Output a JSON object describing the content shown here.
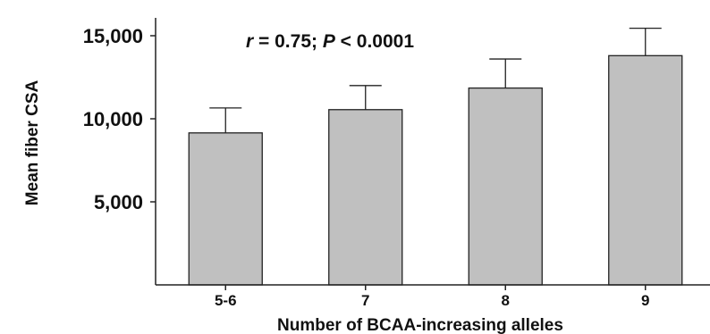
{
  "chart_data": {
    "type": "bar",
    "title": "",
    "xlabel": "Number of BCAA-increasing alleles",
    "ylabel": "Mean fiber CSA",
    "categories": [
      "5-6",
      "7",
      "8",
      "9"
    ],
    "values": [
      9150,
      10550,
      11850,
      13800
    ],
    "error_upper": [
      10650,
      12000,
      13600,
      15450
    ],
    "ylim": [
      0,
      16000
    ],
    "yticks": [
      5000,
      10000,
      15000
    ],
    "ytick_labels": [
      "5,000",
      "10,000",
      "15,000"
    ],
    "grid": false,
    "bar_color": "#c0c0c0",
    "edge_color": "#222222",
    "annotation": {
      "r_symbol": "r",
      "r_text": " = 0.75; ",
      "p_symbol": "P",
      "p_text": " < 0.0001"
    }
  }
}
